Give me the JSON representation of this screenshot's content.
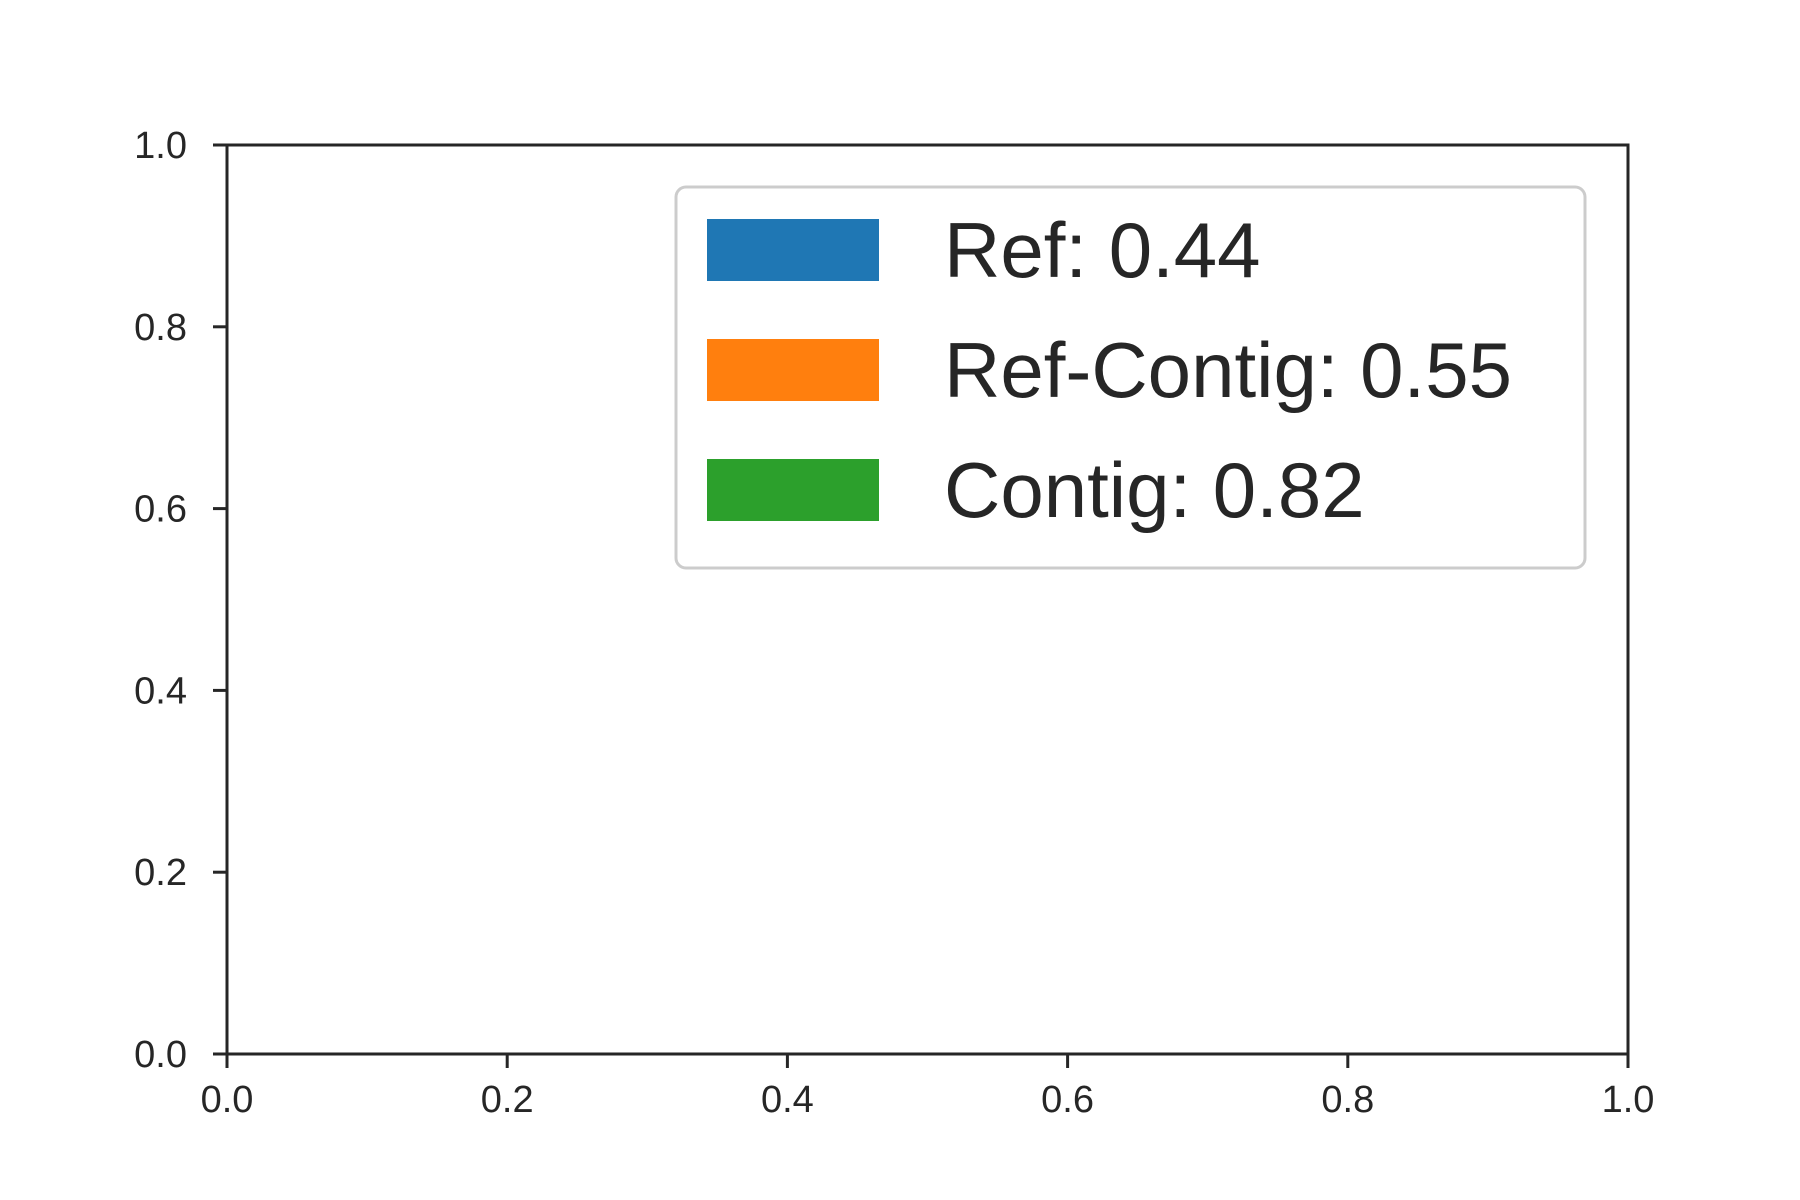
{
  "chart_data": {
    "type": "bar",
    "title": "",
    "xlabel": "",
    "ylabel": "",
    "xlim": [
      0.0,
      1.0
    ],
    "ylim": [
      0.0,
      1.0
    ],
    "x_ticks": [
      "0.0",
      "0.2",
      "0.4",
      "0.6",
      "0.8",
      "1.0"
    ],
    "y_ticks": [
      "0.0",
      "0.2",
      "0.4",
      "0.6",
      "0.8",
      "1.0"
    ],
    "grid": false,
    "legend_position": "top-right",
    "series": [
      {
        "name": "Ref: 0.44",
        "color": "#1f77b4",
        "values": []
      },
      {
        "name": "Ref-Contig: 0.55",
        "color": "#ff7f0e",
        "values": []
      },
      {
        "name": "Contig: 0.82",
        "color": "#2ca02c",
        "values": []
      }
    ]
  }
}
